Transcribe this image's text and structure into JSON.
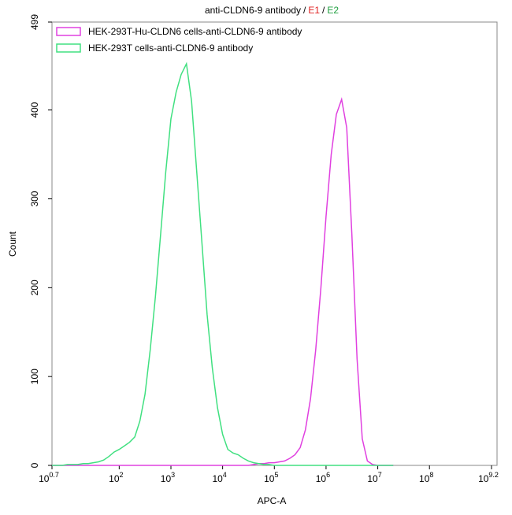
{
  "chart_data": {
    "type": "line",
    "title_parts": [
      "anti-CLDN6-9 antibody",
      "/",
      "E1",
      "/",
      "E2"
    ],
    "title_colors": [
      "#000000",
      "#000000",
      "#e02020",
      "#000000",
      "#20a040"
    ],
    "x_label": "APC-A",
    "y_label": "Count",
    "xscale": "log",
    "xlim": [
      5.0119,
      1584893192
    ],
    "ylim": [
      0,
      499
    ],
    "xticks": [
      {
        "value": 5.0119,
        "label": "10",
        "exponent": "0.7"
      },
      {
        "value": 100,
        "label": "10",
        "exponent": "2"
      },
      {
        "value": 1000,
        "label": "10",
        "exponent": "3"
      },
      {
        "value": 10000,
        "label": "10",
        "exponent": "4"
      },
      {
        "value": 100000,
        "label": "10",
        "exponent": "5"
      },
      {
        "value": 1000000,
        "label": "10",
        "exponent": "6"
      },
      {
        "value": 10000000,
        "label": "10",
        "exponent": "7"
      },
      {
        "value": 100000000,
        "label": "10",
        "exponent": "8"
      },
      {
        "value": 1584893192,
        "label": "10",
        "exponent": "9.2"
      }
    ],
    "yticks": [
      0,
      100,
      200,
      300,
      400,
      499
    ],
    "x": [
      5.01,
      6.31,
      7.94,
      10,
      12.6,
      15.8,
      20,
      25.1,
      31.6,
      39.8,
      50.1,
      63.1,
      79.4,
      100,
      126,
      158,
      200,
      251,
      316,
      398,
      501,
      631,
      794,
      1000,
      1260,
      1580,
      2000,
      2510,
      3160,
      3980,
      5010,
      6310,
      7940,
      10000,
      12600,
      15800,
      20000,
      25100,
      31600,
      39800,
      50100,
      63100,
      79400,
      100000,
      126000,
      158000,
      200000,
      251000,
      316000,
      398000,
      501000,
      631000,
      794000,
      1000000,
      1260000,
      1580000,
      2000000,
      2510000,
      3160000,
      3980000,
      5010000,
      6310000,
      7940000,
      10000000,
      12600000,
      15800000,
      20000000
    ],
    "series": [
      {
        "name": "HEK-293T-Hu-CLDN6 cells-anti-CLDN6-9 antibody",
        "color": "#e040e0",
        "values": [
          0,
          0,
          0,
          0,
          0,
          0,
          0,
          0,
          0,
          0,
          0,
          0,
          0,
          0,
          0,
          0,
          0,
          0,
          0,
          0,
          0,
          0,
          0,
          0,
          0,
          0,
          0,
          0,
          0,
          0,
          0,
          0,
          0,
          0,
          0,
          0,
          0,
          0,
          0,
          1,
          2,
          2,
          3,
          3,
          4,
          5,
          8,
          12,
          20,
          40,
          75,
          130,
          200,
          280,
          350,
          395,
          412,
          380,
          260,
          120,
          30,
          5,
          1,
          0,
          0,
          0,
          0
        ]
      },
      {
        "name": "HEK-293T cells-anti-CLDN6-9 antibody",
        "color": "#40e080",
        "values": [
          0,
          0,
          0,
          1,
          1,
          1,
          2,
          2,
          3,
          4,
          6,
          10,
          15,
          18,
          22,
          26,
          32,
          50,
          80,
          130,
          190,
          260,
          330,
          390,
          420,
          440,
          452,
          410,
          330,
          250,
          170,
          110,
          65,
          35,
          18,
          14,
          12,
          8,
          5,
          3,
          2,
          1,
          1,
          0,
          0,
          0,
          0,
          0,
          0,
          0,
          0,
          0,
          0,
          0,
          0,
          0,
          0,
          0,
          0,
          0,
          0,
          0,
          0,
          0,
          0,
          0,
          0
        ]
      }
    ]
  }
}
